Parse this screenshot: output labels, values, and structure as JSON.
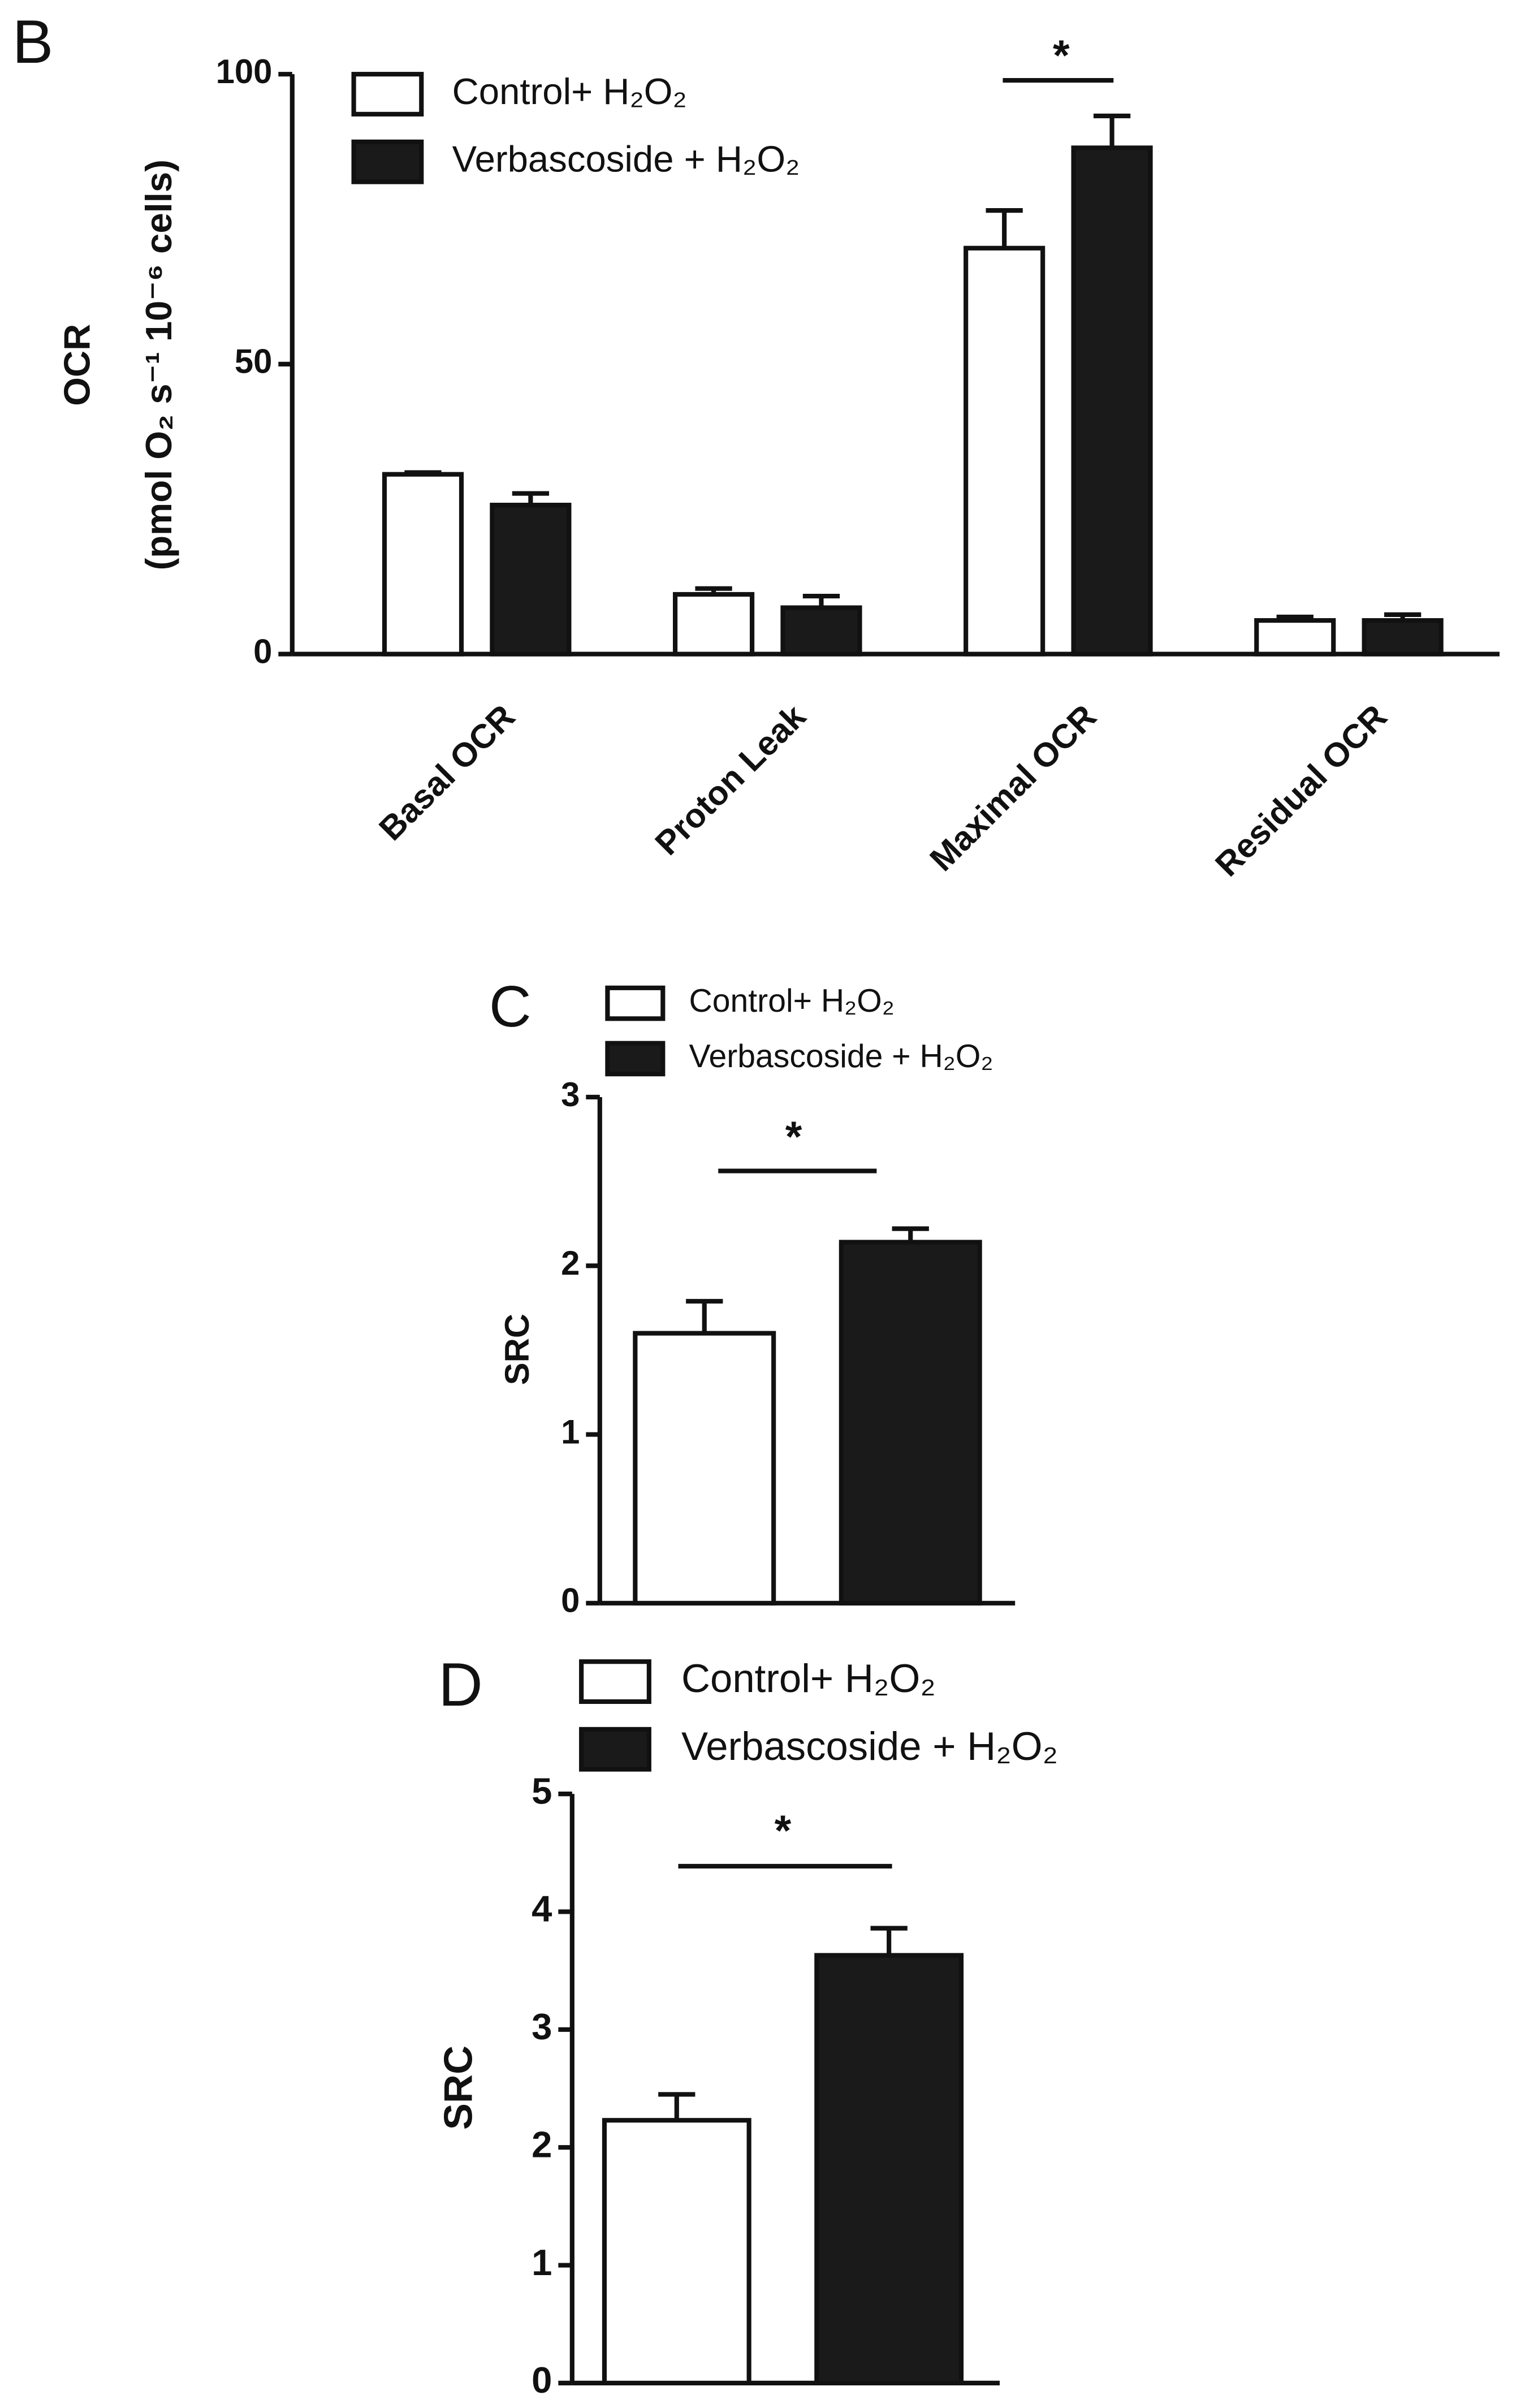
{
  "chart_data": [
    {
      "type": "bar",
      "panel_label": "B",
      "y_label": [
        "OCR",
        "(pmol O₂ s⁻¹ 10⁻⁶ cells)"
      ],
      "categories": [
        "Basal OCR",
        "Proton Leak",
        "Maximal OCR",
        "Residual OCR"
      ],
      "series": [
        {
          "name": "Control+ H₂O₂",
          "color": "#ffffff",
          "values": [
            31,
            10.3,
            70,
            5.8
          ],
          "errors": [
            0.3,
            1,
            6.5,
            0.6
          ]
        },
        {
          "name": "Verbascoside + H₂O₂",
          "color": "#1a1a1a",
          "values": [
            25.7,
            8,
            87.3,
            5.8
          ],
          "errors": [
            2,
            2,
            5.5,
            1
          ]
        }
      ],
      "ylim": [
        0,
        100
      ],
      "yticks": [
        0,
        50,
        100
      ],
      "annotations": [
        "*"
      ]
    },
    {
      "type": "bar",
      "panel_label": "C",
      "y_label": [
        "SRC"
      ],
      "categories": [
        null
      ],
      "series": [
        {
          "name": "Control+ H₂O₂",
          "color": "#ffffff",
          "values": [
            1.6
          ],
          "errors": [
            0.19
          ]
        },
        {
          "name": "Verbascoside + H₂O₂",
          "color": "#1a1a1a",
          "values": [
            2.14
          ],
          "errors": [
            0.08
          ]
        }
      ],
      "ylim": [
        0,
        3
      ],
      "yticks": [
        0,
        1,
        2,
        3
      ],
      "annotations": [
        "*"
      ]
    },
    {
      "type": "bar",
      "panel_label": "D",
      "y_label": [
        "SRC"
      ],
      "categories": [
        null
      ],
      "series": [
        {
          "name": "Control+ H₂O₂",
          "color": "#ffffff",
          "values": [
            2.23
          ],
          "errors": [
            0.22
          ]
        },
        {
          "name": "Verbascoside + H₂O₂",
          "color": "#1a1a1a",
          "values": [
            3.63
          ],
          "errors": [
            0.23
          ]
        }
      ],
      "ylim": [
        0,
        5
      ],
      "yticks": [
        0,
        1,
        2,
        3,
        4,
        5
      ],
      "annotations": [
        "*"
      ]
    }
  ]
}
